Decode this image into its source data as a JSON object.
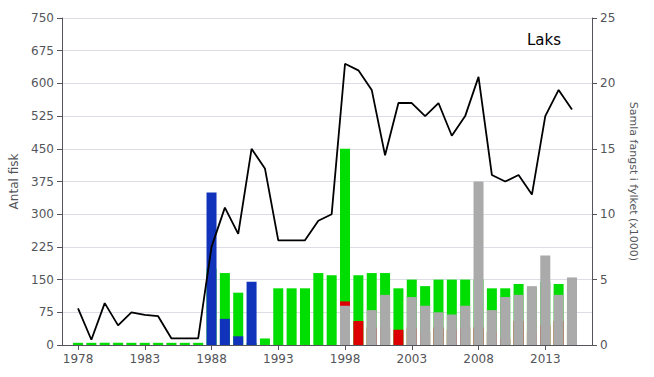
{
  "chart_data": {
    "type": "bar",
    "annotation": "Laks",
    "ylabel": "Antal fisk",
    "y2label": "Samla fangst i fylket (x1000)",
    "stacked": true,
    "grid": true,
    "x": [
      1978,
      1979,
      1980,
      1981,
      1982,
      1983,
      1984,
      1985,
      1986,
      1987,
      1988,
      1989,
      1990,
      1991,
      1992,
      1993,
      1994,
      1995,
      1996,
      1997,
      1998,
      1999,
      2000,
      2001,
      2002,
      2003,
      2004,
      2005,
      2006,
      2007,
      2008,
      2009,
      2010,
      2011,
      2012,
      2013,
      2014,
      2015
    ],
    "xlim": [
      1976.8,
      2016.5
    ],
    "xticks": [
      1978,
      1983,
      1988,
      1993,
      1998,
      2003,
      2008,
      2013
    ],
    "ylim": [
      0,
      750
    ],
    "yticks": [
      0,
      75,
      150,
      225,
      300,
      375,
      450,
      525,
      600,
      675,
      750
    ],
    "y2lim": [
      0,
      25
    ],
    "y2ticks": [
      0,
      5,
      10,
      15,
      20,
      25
    ],
    "series": [
      {
        "type": "bar",
        "color": "#00dd00",
        "values": [
          5,
          5,
          5,
          5,
          5,
          5,
          5,
          5,
          5,
          5,
          175,
          165,
          120,
          5,
          15,
          130,
          130,
          130,
          165,
          160,
          450,
          160,
          165,
          165,
          130,
          150,
          135,
          150,
          150,
          150,
          150,
          130,
          130,
          140,
          130,
          145,
          140,
          135
        ]
      },
      {
        "type": "bar",
        "color": "#dd0000",
        "values": [
          0,
          0,
          0,
          0,
          0,
          0,
          0,
          0,
          0,
          0,
          0,
          0,
          0,
          0,
          0,
          0,
          0,
          0,
          0,
          0,
          100,
          55,
          40,
          40,
          35,
          40,
          30,
          40,
          35,
          40,
          40,
          30,
          15,
          55,
          30,
          45,
          55,
          45
        ]
      },
      {
        "type": "bar",
        "color": "#1133bb",
        "values": [
          0,
          0,
          0,
          0,
          0,
          0,
          0,
          0,
          0,
          0,
          350,
          60,
          20,
          145,
          0,
          0,
          0,
          0,
          0,
          0,
          0,
          0,
          0,
          0,
          0,
          0,
          0,
          0,
          0,
          0,
          0,
          0,
          0,
          0,
          0,
          0,
          0,
          0
        ]
      },
      {
        "type": "bar",
        "color": "#aaaaaa",
        "values": [
          0,
          0,
          0,
          0,
          0,
          0,
          0,
          0,
          0,
          0,
          0,
          0,
          0,
          0,
          0,
          0,
          0,
          0,
          0,
          0,
          90,
          0,
          80,
          115,
          0,
          110,
          90,
          75,
          70,
          90,
          375,
          80,
          110,
          115,
          135,
          205,
          115,
          155
        ]
      },
      {
        "type": "line",
        "axis": "y2",
        "color": "#000000",
        "values": [
          2.8,
          0.4,
          3.2,
          1.5,
          2.5,
          2.3,
          2.2,
          0.5,
          0.5,
          0.5,
          7.5,
          10.5,
          8.5,
          15.0,
          13.5,
          8.0,
          8.0,
          8.0,
          9.5,
          10.0,
          21.5,
          21.0,
          19.5,
          14.5,
          18.5,
          18.5,
          17.5,
          18.5,
          16.0,
          17.5,
          20.5,
          13.0,
          12.5,
          13.0,
          11.5,
          17.5,
          19.5,
          18.0
        ]
      }
    ]
  }
}
